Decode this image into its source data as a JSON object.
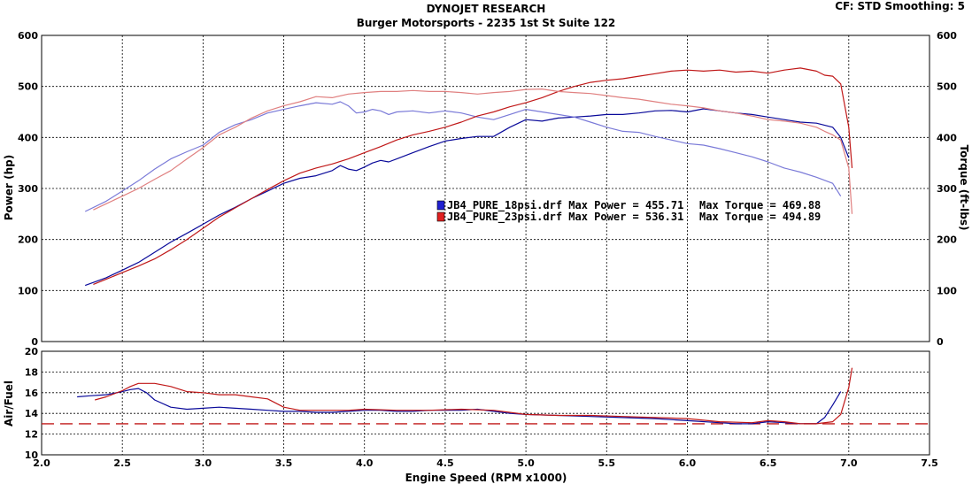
{
  "header": {
    "title": "DYNOJET RESEARCH",
    "subtitle": "Burger Motorsports - 2235 1st St Suite 122",
    "cf_info": "CF: STD  Smoothing: 5"
  },
  "colors": {
    "run1": "#0a0a9a",
    "run1_light": "#7a7ad8",
    "run2": "#c01818",
    "run2_light": "#e08080",
    "target": "#c01818"
  },
  "chart_data": [
    {
      "id": "power_torque",
      "type": "line",
      "xlabel": "Engine Speed (RPM x1000)",
      "ylabel": "Power (hp)",
      "y2label": "Torque (ft-lbs)",
      "xlim": [
        2.0,
        7.5
      ],
      "ylim": [
        0,
        600
      ],
      "y2lim": [
        0,
        600
      ],
      "x_ticks": [
        "2.0",
        "2.5",
        "3.0",
        "3.5",
        "4.0",
        "4.5",
        "5.0",
        "5.5",
        "6.0",
        "6.5",
        "7.0",
        "7.5"
      ],
      "y_ticks": [
        "0",
        "100",
        "200",
        "300",
        "400",
        "500",
        "600"
      ],
      "y2_ticks": [
        "0",
        "100",
        "200",
        "300",
        "400",
        "500",
        "600"
      ],
      "grid": true,
      "legend_position": "center",
      "legend": [
        {
          "label": "JB4_PURE_18psi.drf Max Power = 455.71",
          "torque_label": "Max Torque = 469.88",
          "color": "#2020d0"
        },
        {
          "label": "JB4_PURE_23psi.drf Max Power = 536.31",
          "torque_label": "Max Torque = 494.89",
          "color": "#e02020"
        }
      ],
      "series": [
        {
          "name": "JB4_PURE_18psi.drf",
          "measure": "power",
          "color": "#0a0a9a",
          "x": [
            2.27,
            2.4,
            2.5,
            2.6,
            2.7,
            2.8,
            2.9,
            3.0,
            3.1,
            3.2,
            3.3,
            3.4,
            3.5,
            3.6,
            3.7,
            3.8,
            3.85,
            3.9,
            3.95,
            4.0,
            4.05,
            4.1,
            4.15,
            4.2,
            4.3,
            4.4,
            4.5,
            4.6,
            4.7,
            4.8,
            4.9,
            5.0,
            5.1,
            5.2,
            5.3,
            5.4,
            5.5,
            5.6,
            5.7,
            5.8,
            5.9,
            6.0,
            6.1,
            6.2,
            6.3,
            6.4,
            6.5,
            6.6,
            6.7,
            6.8,
            6.9,
            6.95,
            7.0
          ],
          "y": [
            110,
            125,
            140,
            155,
            175,
            195,
            212,
            230,
            248,
            263,
            280,
            295,
            310,
            320,
            325,
            335,
            345,
            338,
            335,
            342,
            350,
            355,
            352,
            358,
            370,
            382,
            393,
            398,
            402,
            402,
            420,
            435,
            432,
            438,
            440,
            442,
            445,
            445,
            448,
            452,
            453,
            450,
            456,
            452,
            448,
            445,
            440,
            435,
            430,
            428,
            420,
            400,
            360
          ]
        },
        {
          "name": "JB4_PURE_18psi.drf",
          "measure": "torque",
          "color": "#7a7ad8",
          "x": [
            2.27,
            2.4,
            2.5,
            2.6,
            2.7,
            2.8,
            2.9,
            3.0,
            3.1,
            3.2,
            3.3,
            3.4,
            3.5,
            3.6,
            3.7,
            3.8,
            3.85,
            3.9,
            3.95,
            4.0,
            4.05,
            4.1,
            4.15,
            4.2,
            4.3,
            4.4,
            4.5,
            4.6,
            4.7,
            4.8,
            4.9,
            5.0,
            5.1,
            5.2,
            5.3,
            5.4,
            5.5,
            5.6,
            5.7,
            5.8,
            5.9,
            6.0,
            6.1,
            6.2,
            6.3,
            6.4,
            6.5,
            6.6,
            6.7,
            6.8,
            6.9,
            6.95
          ],
          "y": [
            255,
            275,
            295,
            315,
            338,
            358,
            372,
            385,
            410,
            425,
            435,
            448,
            455,
            462,
            468,
            465,
            470,
            462,
            448,
            450,
            455,
            452,
            445,
            450,
            452,
            448,
            452,
            448,
            440,
            435,
            445,
            455,
            450,
            445,
            440,
            430,
            420,
            412,
            410,
            402,
            395,
            388,
            385,
            378,
            370,
            362,
            352,
            340,
            332,
            322,
            310,
            285
          ]
        },
        {
          "name": "JB4_PURE_23psi.drf",
          "measure": "power",
          "color": "#c01818",
          "x": [
            2.32,
            2.4,
            2.5,
            2.6,
            2.7,
            2.8,
            2.9,
            3.0,
            3.1,
            3.2,
            3.3,
            3.4,
            3.5,
            3.6,
            3.7,
            3.8,
            3.9,
            4.0,
            4.1,
            4.2,
            4.3,
            4.4,
            4.5,
            4.6,
            4.7,
            4.8,
            4.9,
            5.0,
            5.1,
            5.2,
            5.3,
            5.4,
            5.5,
            5.6,
            5.7,
            5.8,
            5.9,
            6.0,
            6.1,
            6.2,
            6.3,
            6.4,
            6.5,
            6.6,
            6.7,
            6.8,
            6.85,
            6.9,
            6.95,
            7.0,
            7.02
          ],
          "y": [
            112,
            122,
            135,
            148,
            162,
            180,
            200,
            222,
            244,
            262,
            280,
            298,
            315,
            330,
            340,
            348,
            358,
            370,
            382,
            395,
            405,
            412,
            420,
            430,
            442,
            450,
            460,
            468,
            478,
            490,
            500,
            508,
            512,
            515,
            520,
            525,
            530,
            532,
            530,
            532,
            528,
            530,
            526,
            532,
            536,
            530,
            522,
            520,
            505,
            420,
            340
          ]
        },
        {
          "name": "JB4_PURE_23psi.drf",
          "measure": "torque",
          "color": "#e08080",
          "x": [
            2.32,
            2.4,
            2.5,
            2.6,
            2.7,
            2.8,
            2.9,
            3.0,
            3.1,
            3.2,
            3.3,
            3.4,
            3.5,
            3.6,
            3.7,
            3.8,
            3.9,
            4.0,
            4.1,
            4.2,
            4.3,
            4.4,
            4.5,
            4.6,
            4.7,
            4.8,
            4.9,
            5.0,
            5.1,
            5.2,
            5.3,
            5.4,
            5.5,
            5.6,
            5.7,
            5.8,
            5.9,
            6.0,
            6.1,
            6.2,
            6.3,
            6.4,
            6.5,
            6.6,
            6.7,
            6.8,
            6.85,
            6.9,
            6.95,
            7.0,
            7.02
          ],
          "y": [
            258,
            270,
            285,
            300,
            318,
            335,
            358,
            380,
            405,
            420,
            438,
            452,
            462,
            470,
            480,
            478,
            485,
            488,
            490,
            490,
            492,
            490,
            490,
            488,
            485,
            488,
            490,
            494,
            495,
            490,
            488,
            486,
            482,
            478,
            475,
            470,
            465,
            462,
            458,
            452,
            448,
            442,
            435,
            432,
            428,
            420,
            412,
            405,
            395,
            340,
            250
          ]
        }
      ]
    },
    {
      "id": "air_fuel",
      "type": "line",
      "xlabel": "Engine Speed (RPM x1000)",
      "ylabel": "Air/Fuel",
      "xlim": [
        2.0,
        7.5
      ],
      "ylim": [
        10,
        20
      ],
      "y_ticks": [
        "10",
        "12",
        "14",
        "16",
        "18",
        "20"
      ],
      "grid": true,
      "reference_line": {
        "y": 13,
        "color": "#c01818",
        "style": "dashed"
      },
      "series": [
        {
          "name": "JB4_PURE_18psi.drf",
          "color": "#0a0a9a",
          "x": [
            2.22,
            2.3,
            2.4,
            2.5,
            2.55,
            2.6,
            2.65,
            2.7,
            2.8,
            2.9,
            3.0,
            3.1,
            3.2,
            3.3,
            3.4,
            3.5,
            3.6,
            3.7,
            3.8,
            3.9,
            4.0,
            4.1,
            4.2,
            4.3,
            4.4,
            4.5,
            4.6,
            4.7,
            4.8,
            4.9,
            5.0,
            5.2,
            5.4,
            5.6,
            5.8,
            6.0,
            6.2,
            6.3,
            6.4,
            6.5,
            6.6,
            6.7,
            6.8,
            6.85,
            6.9,
            6.95
          ],
          "y": [
            15.6,
            15.7,
            15.8,
            16.1,
            16.3,
            16.4,
            16.0,
            15.3,
            14.6,
            14.4,
            14.5,
            14.6,
            14.5,
            14.4,
            14.3,
            14.2,
            14.2,
            14.1,
            14.1,
            14.2,
            14.3,
            14.3,
            14.2,
            14.2,
            14.3,
            14.3,
            14.3,
            14.4,
            14.2,
            14.0,
            13.9,
            13.8,
            13.7,
            13.6,
            13.5,
            13.3,
            13.1,
            13.0,
            13.0,
            13.2,
            13.1,
            13.0,
            13.0,
            13.6,
            14.8,
            16.1
          ]
        },
        {
          "name": "JB4_PURE_23psi.drf",
          "color": "#c01818",
          "x": [
            2.33,
            2.4,
            2.5,
            2.55,
            2.6,
            2.7,
            2.8,
            2.9,
            3.0,
            3.1,
            3.2,
            3.3,
            3.4,
            3.5,
            3.6,
            3.7,
            3.8,
            3.9,
            4.0,
            4.2,
            4.4,
            4.6,
            4.8,
            5.0,
            5.2,
            5.4,
            5.6,
            5.8,
            6.0,
            6.2,
            6.4,
            6.5,
            6.6,
            6.7,
            6.8,
            6.9,
            6.95,
            7.0,
            7.02
          ],
          "y": [
            15.3,
            15.6,
            16.2,
            16.6,
            16.9,
            16.9,
            16.6,
            16.1,
            16.0,
            15.8,
            15.8,
            15.6,
            15.4,
            14.6,
            14.3,
            14.3,
            14.3,
            14.3,
            14.4,
            14.3,
            14.3,
            14.4,
            14.3,
            13.9,
            13.8,
            13.8,
            13.7,
            13.6,
            13.5,
            13.2,
            13.1,
            13.3,
            13.2,
            13.0,
            13.0,
            13.2,
            13.9,
            16.5,
            18.4
          ]
        }
      ]
    }
  ]
}
